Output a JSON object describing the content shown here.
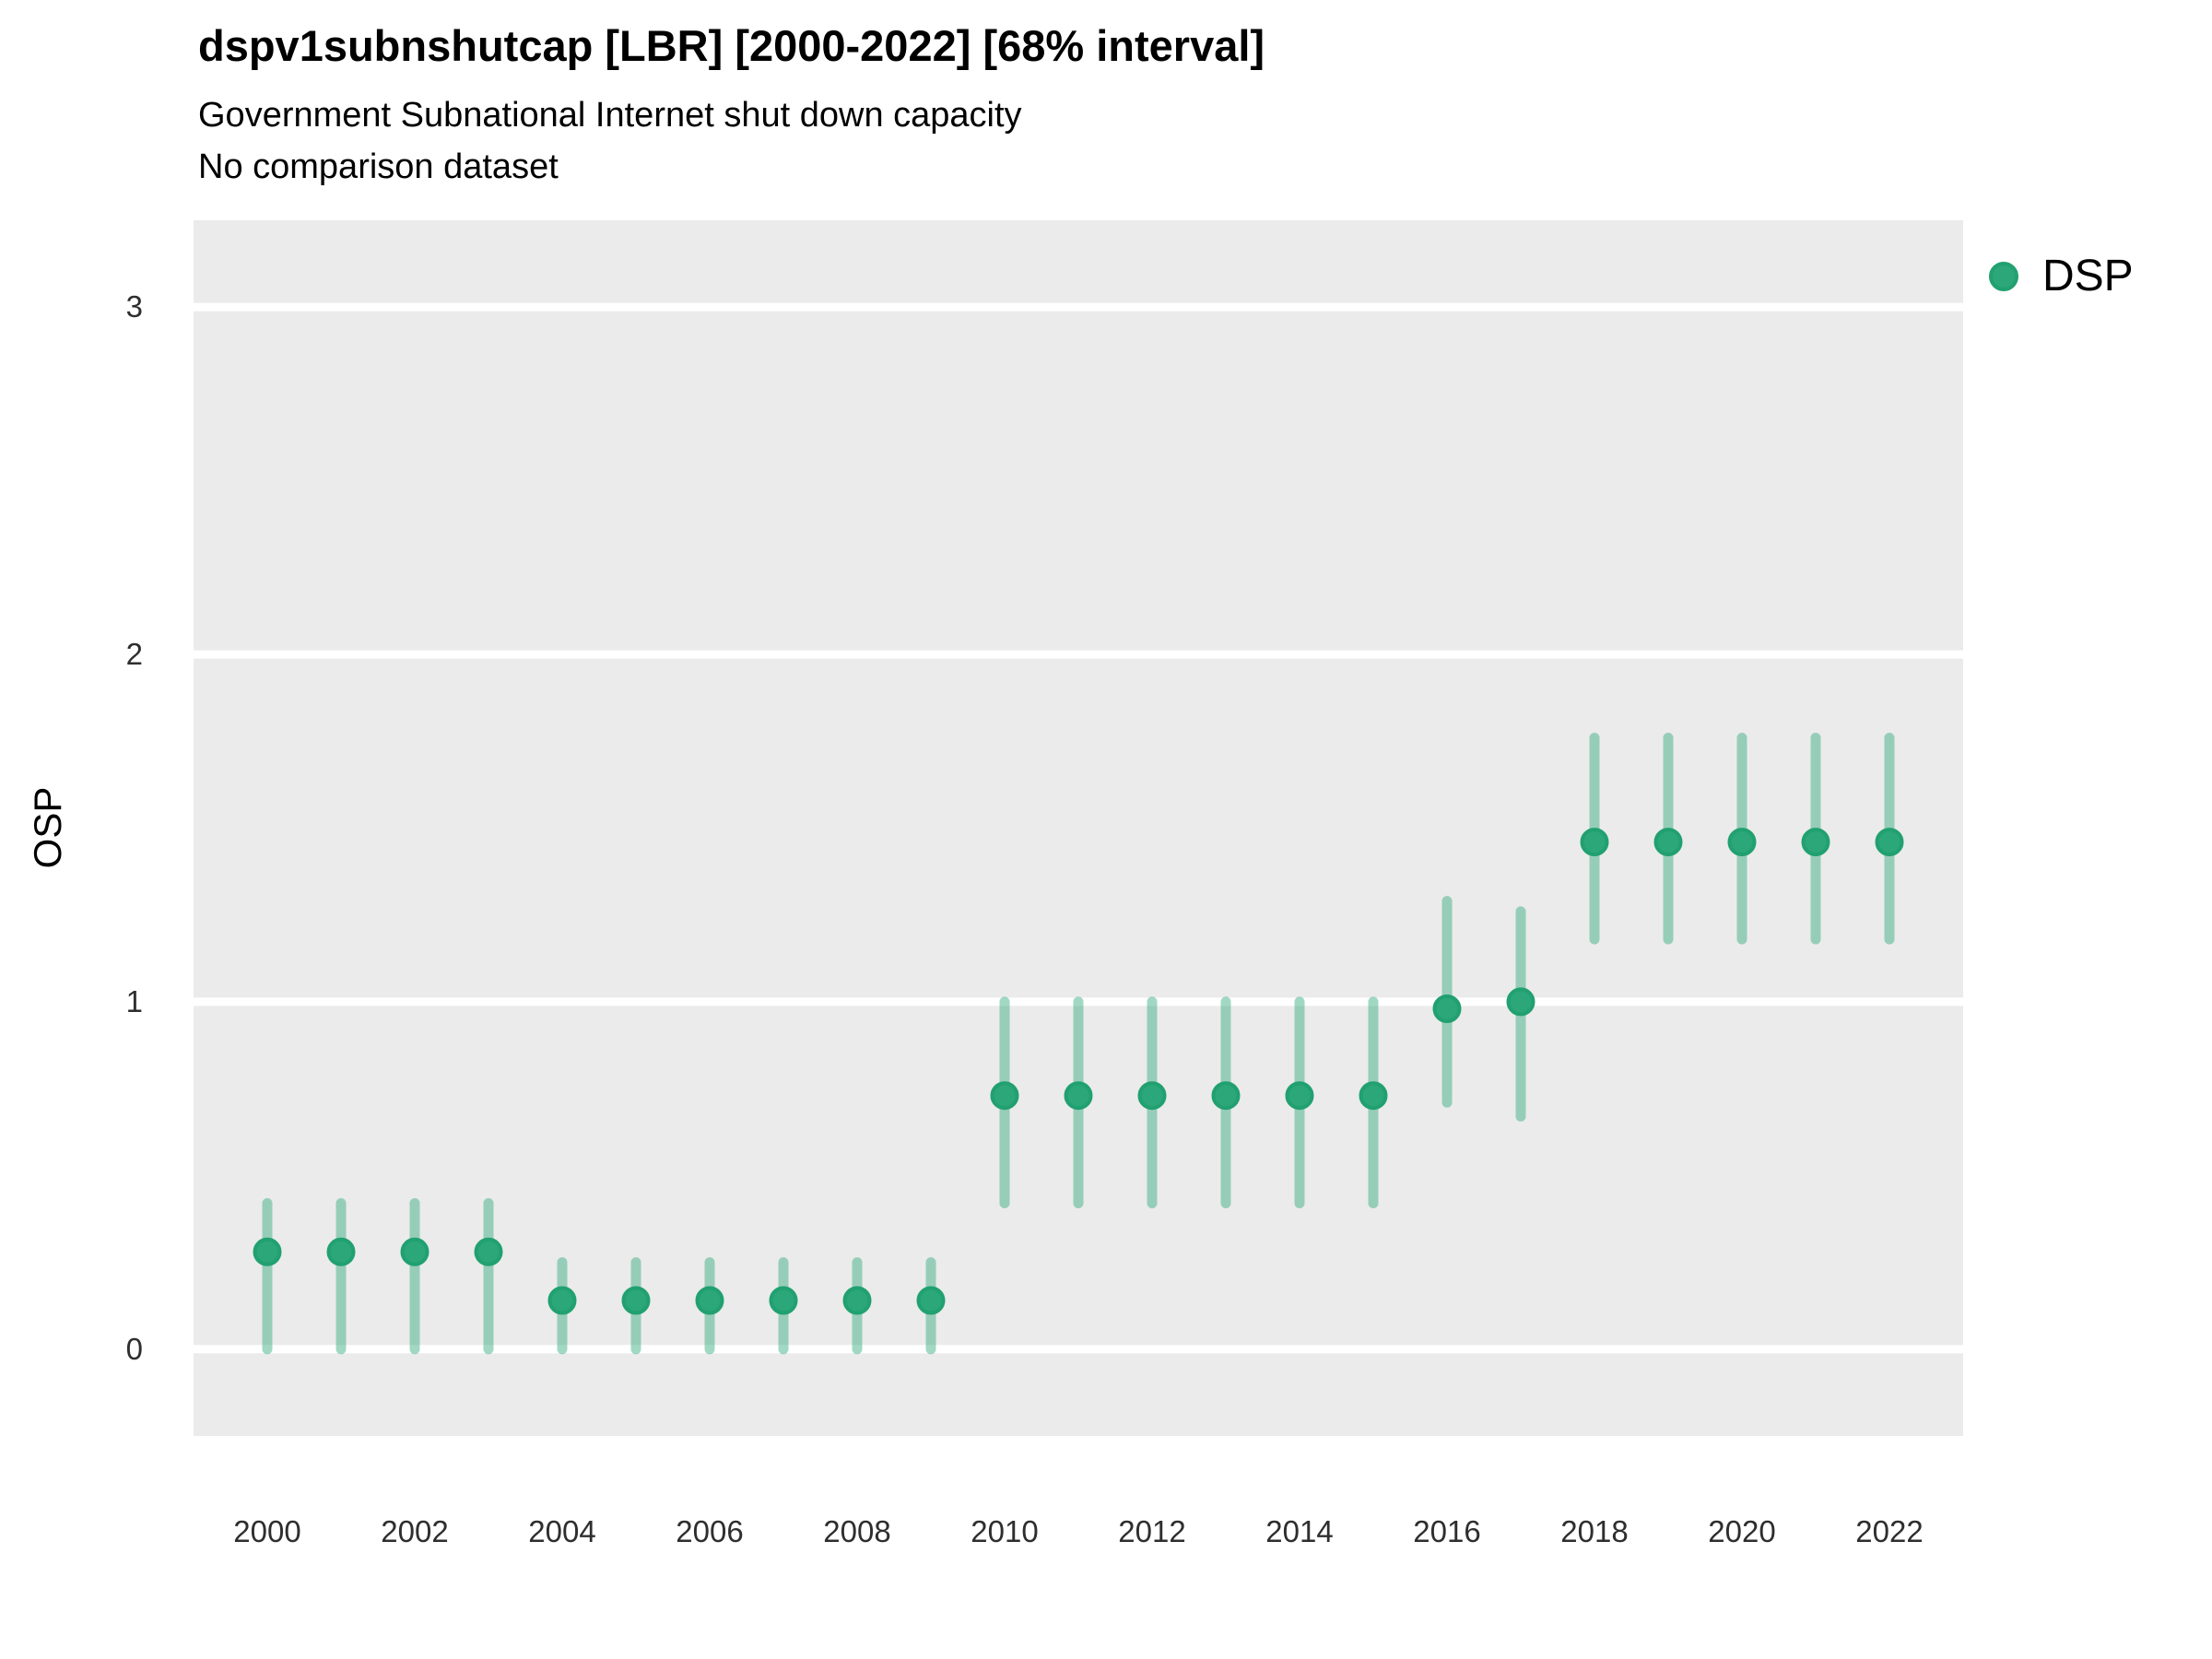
{
  "header": {
    "title": "dspv1subnshutcap [LBR] [2000-2022] [68% interval]",
    "subtitle": "Government Subnational Internet shut down capacity",
    "note": "No comparison dataset"
  },
  "legend": {
    "label": "DSP"
  },
  "axes": {
    "y_label": "OSP",
    "y_ticks": [
      0,
      1,
      2,
      3
    ],
    "x_ticks": [
      2000,
      2002,
      2004,
      2006,
      2008,
      2010,
      2012,
      2014,
      2016,
      2018,
      2020,
      2022
    ]
  },
  "colors": {
    "point": "#2BA77A",
    "point_stroke": "#21A070",
    "interval": "rgba(46,168,124,0.45)",
    "panel_bg": "#EBEBEB",
    "grid": "#FFFFFF",
    "tick_text": "#2e2e2e"
  },
  "chart_data": {
    "type": "scatter",
    "title": "dspv1subnshutcap [LBR] [2000-2022] [68% interval]",
    "subtitle": "Government Subnational Internet shut down capacity",
    "note": "No comparison dataset",
    "xlabel": "",
    "ylabel": "OSP",
    "interval": "68%",
    "xlim": [
      1999,
      2023
    ],
    "ylim": [
      -0.25,
      3.25
    ],
    "grid": "horizontal-major-only",
    "legend_position": "right",
    "series": [
      {
        "name": "DSP",
        "points": [
          {
            "year": 2000,
            "value": 0.28,
            "lo": 0.0,
            "hi": 0.42
          },
          {
            "year": 2001,
            "value": 0.28,
            "lo": 0.0,
            "hi": 0.42
          },
          {
            "year": 2002,
            "value": 0.28,
            "lo": 0.0,
            "hi": 0.42
          },
          {
            "year": 2003,
            "value": 0.28,
            "lo": 0.0,
            "hi": 0.42
          },
          {
            "year": 2004,
            "value": 0.14,
            "lo": 0.0,
            "hi": 0.25
          },
          {
            "year": 2005,
            "value": 0.14,
            "lo": 0.0,
            "hi": 0.25
          },
          {
            "year": 2006,
            "value": 0.14,
            "lo": 0.0,
            "hi": 0.25
          },
          {
            "year": 2007,
            "value": 0.14,
            "lo": 0.0,
            "hi": 0.25
          },
          {
            "year": 2008,
            "value": 0.14,
            "lo": 0.0,
            "hi": 0.25
          },
          {
            "year": 2009,
            "value": 0.14,
            "lo": 0.0,
            "hi": 0.25
          },
          {
            "year": 2010,
            "value": 0.73,
            "lo": 0.42,
            "hi": 1.0
          },
          {
            "year": 2011,
            "value": 0.73,
            "lo": 0.42,
            "hi": 1.0
          },
          {
            "year": 2012,
            "value": 0.73,
            "lo": 0.42,
            "hi": 1.0
          },
          {
            "year": 2013,
            "value": 0.73,
            "lo": 0.42,
            "hi": 1.0
          },
          {
            "year": 2014,
            "value": 0.73,
            "lo": 0.42,
            "hi": 1.0
          },
          {
            "year": 2015,
            "value": 0.73,
            "lo": 0.42,
            "hi": 1.0
          },
          {
            "year": 2016,
            "value": 0.98,
            "lo": 0.71,
            "hi": 1.29
          },
          {
            "year": 2017,
            "value": 1.0,
            "lo": 0.67,
            "hi": 1.26
          },
          {
            "year": 2018,
            "value": 1.46,
            "lo": 1.18,
            "hi": 1.76
          },
          {
            "year": 2019,
            "value": 1.46,
            "lo": 1.18,
            "hi": 1.76
          },
          {
            "year": 2020,
            "value": 1.46,
            "lo": 1.18,
            "hi": 1.76
          },
          {
            "year": 2021,
            "value": 1.46,
            "lo": 1.18,
            "hi": 1.76
          },
          {
            "year": 2022,
            "value": 1.46,
            "lo": 1.18,
            "hi": 1.76
          }
        ]
      }
    ]
  }
}
